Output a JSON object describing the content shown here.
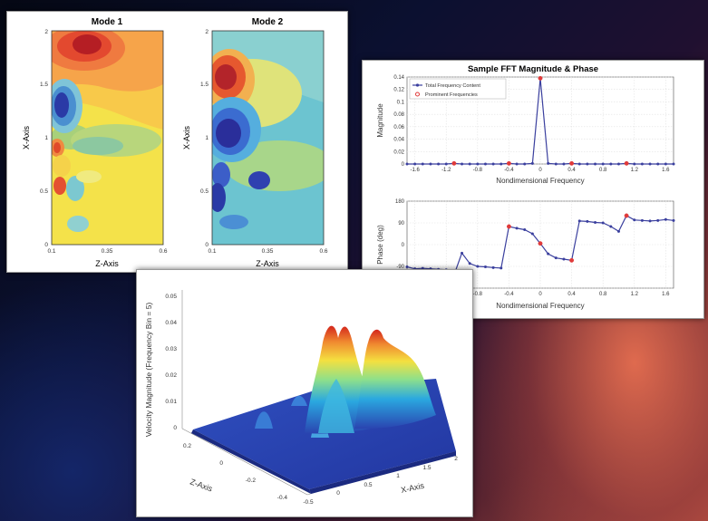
{
  "mode_plots": {
    "mode1": {
      "title": "Mode 1",
      "xlabel": "Z-Axis",
      "ylabel": "X-Axis",
      "xticks": [
        "0.1",
        "0.35",
        "0.6"
      ],
      "yticks": [
        "0",
        "0.5",
        "1",
        "1.5",
        "2"
      ]
    },
    "mode2": {
      "title": "Mode 2",
      "xlabel": "Z-Axis",
      "ylabel": "X-Axis",
      "xticks": [
        "0.1",
        "0.35",
        "0.6"
      ],
      "yticks": [
        "0",
        "0.5",
        "1",
        "1.5",
        "2"
      ]
    }
  },
  "fft": {
    "title": "Sample FFT Magnitude & Phase",
    "legend": {
      "total": "Total Frequency Content",
      "prominent": "Prominent Frequencies"
    },
    "colors": {
      "line": "#3a3f9e",
      "prominent": "#e03a3a"
    }
  },
  "surface": {
    "zlabel": "Velocity Magnitude (Frequency Bin = 5)",
    "xlabel": "X-Axis",
    "ylabel": "Z-Axis",
    "zticks": [
      "0",
      "0.01",
      "0.02",
      "0.03",
      "0.04",
      "0.05"
    ],
    "xticks": [
      "-0.5",
      "0",
      "0.5",
      "1",
      "1.5",
      "2"
    ],
    "yticks": [
      "-0.4",
      "-0.2",
      "0",
      "0.2"
    ]
  },
  "chart_data": [
    {
      "type": "line",
      "title": "",
      "xlabel": "Nondimensional Frequency",
      "ylabel": "Magnitude",
      "xlim": [
        -1.7,
        1.7
      ],
      "ylim": [
        0,
        0.14
      ],
      "xticks": [
        "-1.6",
        "-1.2",
        "-0.8",
        "-0.4",
        "0",
        "0.4",
        "0.8",
        "1.2",
        "1.6"
      ],
      "yticks": [
        "0",
        "0.02",
        "0.04",
        "0.06",
        "0.08",
        "0.1",
        "0.12",
        "0.14"
      ],
      "series": [
        {
          "name": "Total Frequency Content",
          "x": [
            -1.7,
            -1.6,
            -1.5,
            -1.4,
            -1.3,
            -1.2,
            -1.1,
            -1.0,
            -0.9,
            -0.8,
            -0.7,
            -0.6,
            -0.5,
            -0.4,
            -0.3,
            -0.2,
            -0.1,
            0,
            0.1,
            0.2,
            0.3,
            0.4,
            0.5,
            0.6,
            0.7,
            0.8,
            0.9,
            1.0,
            1.1,
            1.2,
            1.3,
            1.4,
            1.5,
            1.6,
            1.7
          ],
          "values": [
            0,
            0,
            0,
            0,
            0,
            0,
            0.001,
            0,
            0,
            0,
            0,
            0,
            0,
            0.001,
            0,
            0,
            0.001,
            0.138,
            0.001,
            0,
            0,
            0.001,
            0,
            0,
            0,
            0,
            0,
            0,
            0.001,
            0,
            0,
            0,
            0,
            0,
            0
          ]
        },
        {
          "name": "Prominent Frequencies",
          "x": [
            -1.1,
            -0.4,
            0,
            0.4,
            1.1
          ],
          "values": [
            0.001,
            0.001,
            0.138,
            0.001,
            0.001
          ]
        }
      ]
    },
    {
      "type": "line",
      "title": "",
      "xlabel": "Nondimensional Frequency",
      "ylabel": "Phase (deg)",
      "xlim": [
        -1.7,
        1.7
      ],
      "ylim": [
        -180,
        180
      ],
      "xticks": [
        "-1.6",
        "-1.2",
        "-0.8",
        "-0.4",
        "0",
        "0.4",
        "0.8",
        "1.2",
        "1.6"
      ],
      "yticks": [
        "-180",
        "-90",
        "0",
        "90",
        "180"
      ],
      "series": [
        {
          "name": "Total Frequency Content",
          "x": [
            -1.7,
            -1.6,
            -1.5,
            -1.4,
            -1.3,
            -1.2,
            -1.1,
            -1.0,
            -0.9,
            -0.8,
            -0.7,
            -0.6,
            -0.5,
            -0.4,
            -0.3,
            -0.2,
            -0.1,
            0,
            0.1,
            0.2,
            0.3,
            0.4,
            0.5,
            0.6,
            0.7,
            0.8,
            0.9,
            1.0,
            1.1,
            1.2,
            1.3,
            1.4,
            1.5,
            1.6,
            1.7
          ],
          "values": [
            -92,
            -100,
            -98,
            -100,
            -102,
            -104,
            -125,
            -35,
            -78,
            -90,
            -92,
            -95,
            -97,
            75,
            68,
            62,
            45,
            5,
            -38,
            -55,
            -60,
            -65,
            98,
            96,
            92,
            90,
            75,
            55,
            120,
            102,
            100,
            98,
            100,
            104,
            100
          ]
        },
        {
          "name": "Prominent Frequencies",
          "x": [
            -1.1,
            -0.4,
            0,
            0.4,
            1.1
          ],
          "values": [
            -125,
            75,
            5,
            -65,
            120
          ]
        }
      ]
    }
  ]
}
